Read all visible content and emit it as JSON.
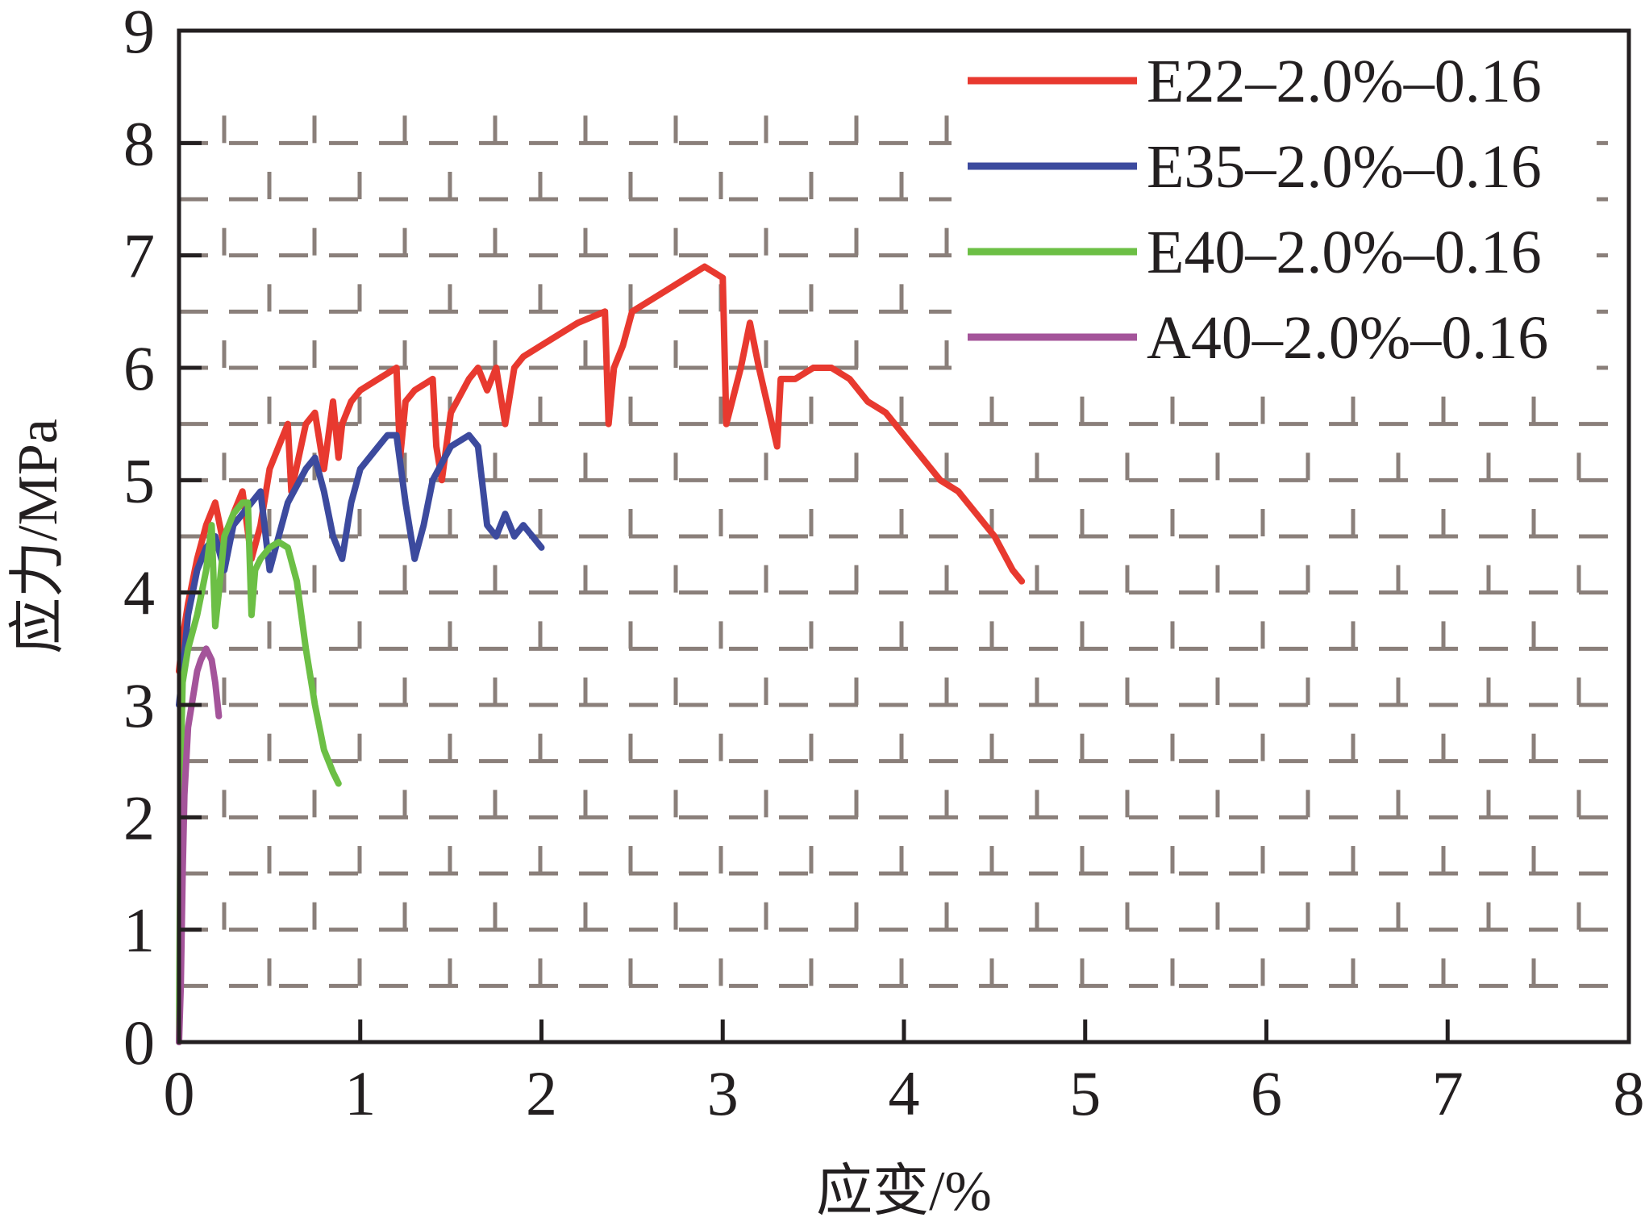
{
  "chart_data": {
    "type": "line",
    "xlabel": "应变/%",
    "ylabel": "应力/MPa",
    "xlim": [
      0,
      8
    ],
    "ylim": [
      0,
      9
    ],
    "xticks": [
      "0",
      "1",
      "2",
      "3",
      "4",
      "5",
      "6",
      "7",
      "8"
    ],
    "yticks": [
      "0",
      "1",
      "2",
      "3",
      "4",
      "5",
      "6",
      "7",
      "8",
      "9"
    ],
    "grid": "dashed grey brick-pattern background",
    "legend_position": "top-right",
    "series": [
      {
        "name": "E22–2.0%–0.16",
        "color": "#e8392f",
        "x": [
          0.0,
          0.02,
          0.05,
          0.1,
          0.15,
          0.2,
          0.25,
          0.3,
          0.35,
          0.4,
          0.45,
          0.5,
          0.55,
          0.6,
          0.62,
          0.7,
          0.75,
          0.8,
          0.85,
          0.88,
          0.9,
          0.95,
          1.0,
          1.1,
          1.2,
          1.22,
          1.25,
          1.3,
          1.4,
          1.42,
          1.45,
          1.5,
          1.6,
          1.65,
          1.7,
          1.75,
          1.8,
          1.85,
          1.9,
          2.0,
          2.2,
          2.35,
          2.37,
          2.4,
          2.45,
          2.5,
          2.6,
          2.7,
          2.8,
          2.9,
          3.0,
          3.02,
          3.1,
          3.15,
          3.2,
          3.3,
          3.32,
          3.4,
          3.5,
          3.6,
          3.7,
          3.8,
          3.9,
          4.0,
          4.1,
          4.2,
          4.3,
          4.4,
          4.5,
          4.6,
          4.65
        ],
        "y": [
          3.3,
          3.6,
          3.9,
          4.3,
          4.6,
          4.8,
          4.4,
          4.7,
          4.9,
          4.3,
          4.6,
          5.1,
          5.3,
          5.5,
          4.9,
          5.5,
          5.6,
          5.1,
          5.7,
          5.2,
          5.5,
          5.7,
          5.8,
          5.9,
          6.0,
          5.2,
          5.7,
          5.8,
          5.9,
          5.3,
          5.0,
          5.6,
          5.9,
          6.0,
          5.8,
          6.0,
          5.5,
          6.0,
          6.1,
          6.2,
          6.4,
          6.5,
          5.5,
          6.0,
          6.2,
          6.5,
          6.6,
          6.7,
          6.8,
          6.9,
          6.8,
          5.5,
          6.0,
          6.4,
          6.0,
          5.3,
          5.9,
          5.9,
          6.0,
          6.0,
          5.9,
          5.7,
          5.6,
          5.4,
          5.2,
          5.0,
          4.9,
          4.7,
          4.5,
          4.2,
          4.1
        ]
      },
      {
        "name": "E35–2.0%–0.16",
        "color": "#3c4a9e",
        "x": [
          0.0,
          0.02,
          0.05,
          0.1,
          0.15,
          0.2,
          0.25,
          0.3,
          0.35,
          0.4,
          0.45,
          0.5,
          0.55,
          0.6,
          0.7,
          0.75,
          0.8,
          0.85,
          0.9,
          0.95,
          1.0,
          1.1,
          1.15,
          1.2,
          1.25,
          1.3,
          1.35,
          1.4,
          1.5,
          1.6,
          1.65,
          1.7,
          1.75,
          1.8,
          1.85,
          1.9,
          1.95,
          2.0
        ],
        "y": [
          3.0,
          3.3,
          3.8,
          4.2,
          4.4,
          4.5,
          4.2,
          4.6,
          4.7,
          4.8,
          4.9,
          4.2,
          4.5,
          4.8,
          5.1,
          5.2,
          4.9,
          4.5,
          4.3,
          4.8,
          5.1,
          5.3,
          5.4,
          5.4,
          4.8,
          4.3,
          4.6,
          5.0,
          5.3,
          5.4,
          5.3,
          4.6,
          4.5,
          4.7,
          4.5,
          4.6,
          4.5,
          4.4
        ]
      },
      {
        "name": "E40–2.0%–0.16",
        "color": "#6cbf45",
        "x": [
          0.0,
          0.01,
          0.02,
          0.05,
          0.1,
          0.15,
          0.18,
          0.2,
          0.22,
          0.25,
          0.3,
          0.35,
          0.38,
          0.4,
          0.42,
          0.45,
          0.5,
          0.55,
          0.6,
          0.65,
          0.7,
          0.75,
          0.8,
          0.85,
          0.88
        ],
        "y": [
          0.0,
          2.5,
          3.2,
          3.5,
          3.8,
          4.2,
          4.6,
          3.7,
          4.0,
          4.5,
          4.7,
          4.8,
          4.8,
          3.8,
          4.2,
          4.3,
          4.4,
          4.45,
          4.4,
          4.1,
          3.5,
          3.0,
          2.6,
          2.4,
          2.3
        ]
      },
      {
        "name": "A40–2.0%–0.16",
        "color": "#a4549a",
        "x": [
          0.0,
          0.01,
          0.02,
          0.03,
          0.05,
          0.08,
          0.1,
          0.12,
          0.15,
          0.18,
          0.2,
          0.22
        ],
        "y": [
          0.0,
          0.5,
          1.5,
          2.2,
          2.8,
          3.1,
          3.3,
          3.4,
          3.5,
          3.4,
          3.2,
          2.9
        ]
      }
    ]
  }
}
